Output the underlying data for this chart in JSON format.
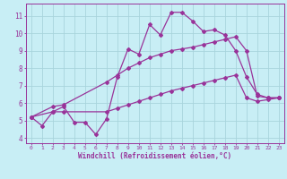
{
  "background_color": "#c8eef5",
  "grid_color": "#a8d4dc",
  "line_color": "#993399",
  "marker_style": "D",
  "marker_size": 2,
  "line_width": 0.9,
  "xlabel": "Windchill (Refroidissement éolien,°C)",
  "ylabel_left_ticks": [
    4,
    5,
    6,
    7,
    8,
    9,
    10,
    11
  ],
  "xlim": [
    -0.5,
    23.5
  ],
  "ylim": [
    3.7,
    11.7
  ],
  "series1_x": [
    0,
    1,
    2,
    3,
    4,
    5,
    6,
    7,
    8,
    9,
    10,
    11,
    12,
    13,
    14,
    15,
    16,
    17,
    18,
    19,
    20,
    21,
    22,
    23
  ],
  "series1_y": [
    5.2,
    4.7,
    5.5,
    5.8,
    4.9,
    4.9,
    4.2,
    5.1,
    7.5,
    9.1,
    8.8,
    10.5,
    9.9,
    11.2,
    11.2,
    10.7,
    10.1,
    10.2,
    9.9,
    9.0,
    7.5,
    6.5,
    6.3,
    6.3
  ],
  "series2_x": [
    0,
    2,
    3,
    7,
    8,
    9,
    10,
    11,
    12,
    13,
    14,
    15,
    16,
    17,
    18,
    19,
    20,
    21,
    22,
    23
  ],
  "series2_y": [
    5.2,
    5.8,
    5.9,
    7.2,
    7.6,
    8.0,
    8.3,
    8.6,
    8.8,
    9.0,
    9.1,
    9.2,
    9.35,
    9.5,
    9.65,
    9.8,
    9.0,
    6.4,
    6.3,
    6.3
  ],
  "series3_x": [
    0,
    2,
    3,
    7,
    8,
    9,
    10,
    11,
    12,
    13,
    14,
    15,
    16,
    17,
    18,
    19,
    20,
    21,
    22,
    23
  ],
  "series3_y": [
    5.2,
    5.5,
    5.5,
    5.5,
    5.7,
    5.9,
    6.1,
    6.3,
    6.5,
    6.7,
    6.85,
    7.0,
    7.15,
    7.3,
    7.45,
    7.6,
    6.3,
    6.1,
    6.2,
    6.3
  ]
}
